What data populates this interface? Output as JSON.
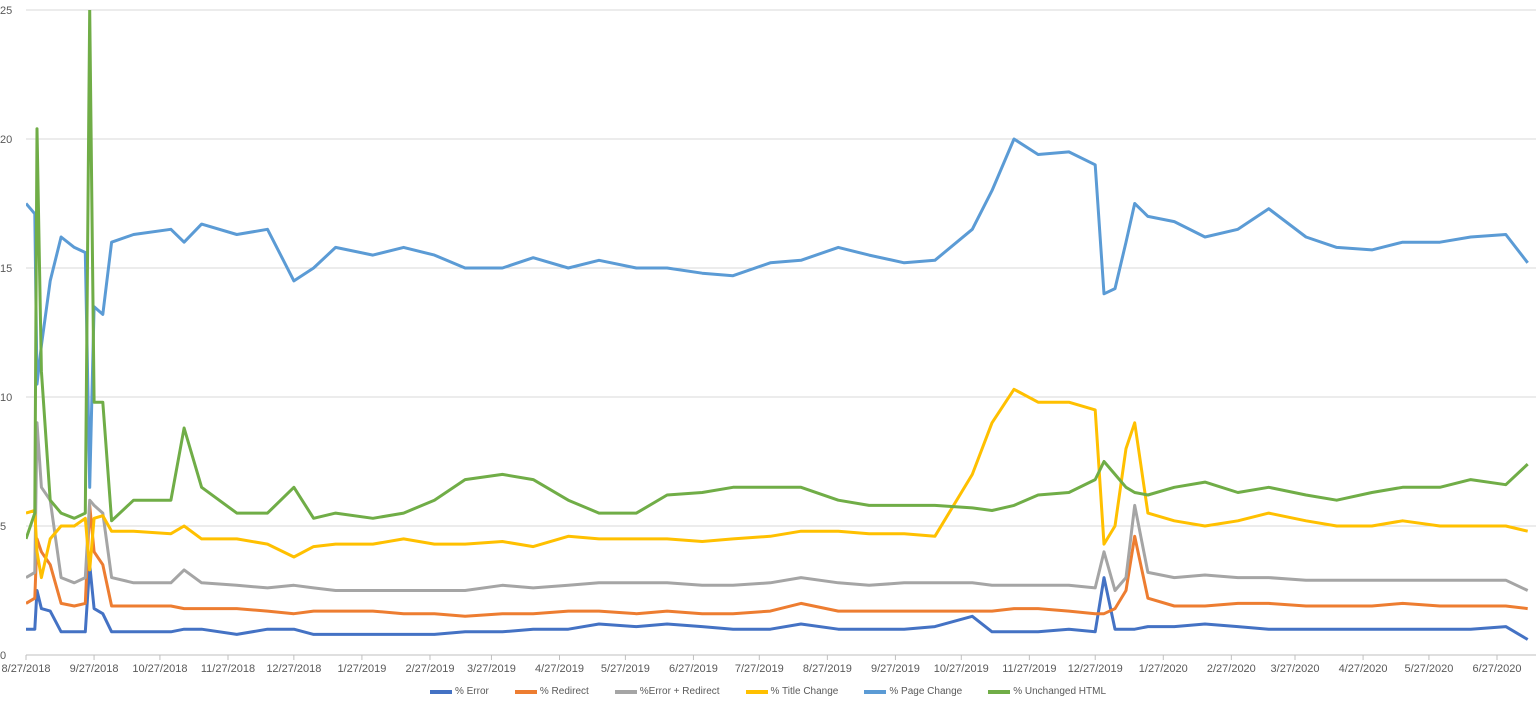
{
  "chart_data": {
    "type": "line",
    "title": "",
    "xlabel": "",
    "ylabel": "",
    "ylim": [
      0,
      25
    ],
    "yticks": [
      "0",
      "5",
      "10",
      "15",
      "20",
      "25"
    ],
    "xticks": [
      "8/27/2018",
      "9/27/2018",
      "10/27/2018",
      "11/27/2018",
      "12/27/2018",
      "1/27/2019",
      "2/27/2019",
      "3/27/2019",
      "4/27/2019",
      "5/27/2019",
      "6/27/2019",
      "7/27/2019",
      "8/27/2019",
      "9/27/2019",
      "10/27/2019",
      "11/27/2019",
      "12/27/2019",
      "1/27/2020",
      "2/27/2020",
      "3/27/2020",
      "4/27/2020",
      "5/27/2020",
      "6/27/2020"
    ],
    "grid": true,
    "legend_position": "bottom",
    "x": [
      "2018-08-27",
      "2018-08-31",
      "2018-09-01",
      "2018-09-03",
      "2018-09-07",
      "2018-09-12",
      "2018-09-18",
      "2018-09-23",
      "2018-09-25",
      "2018-09-27",
      "2018-10-01",
      "2018-10-05",
      "2018-10-15",
      "2018-11-01",
      "2018-11-07",
      "2018-11-15",
      "2018-12-01",
      "2018-12-15",
      "2018-12-27",
      "2019-01-05",
      "2019-01-15",
      "2019-02-01",
      "2019-02-15",
      "2019-03-01",
      "2019-03-15",
      "2019-04-01",
      "2019-04-15",
      "2019-05-01",
      "2019-05-15",
      "2019-06-01",
      "2019-06-15",
      "2019-07-01",
      "2019-07-15",
      "2019-08-01",
      "2019-08-15",
      "2019-09-01",
      "2019-09-15",
      "2019-10-01",
      "2019-10-15",
      "2019-11-01",
      "2019-11-10",
      "2019-11-20",
      "2019-12-01",
      "2019-12-15",
      "2019-12-27",
      "2019-12-31",
      "2020-01-05",
      "2020-01-10",
      "2020-01-14",
      "2020-01-20",
      "2020-02-01",
      "2020-02-15",
      "2020-03-01",
      "2020-03-15",
      "2020-04-01",
      "2020-04-15",
      "2020-05-01",
      "2020-05-15",
      "2020-06-01",
      "2020-06-15",
      "2020-07-01",
      "2020-07-11"
    ],
    "series": [
      {
        "name": "% Error",
        "color": "#4472C4",
        "values": [
          1,
          1,
          2.5,
          1.8,
          1.7,
          0.9,
          0.9,
          0.9,
          3.5,
          1.8,
          1.6,
          0.9,
          0.9,
          0.9,
          1,
          1,
          0.8,
          1,
          1,
          0.8,
          0.8,
          0.8,
          0.8,
          0.8,
          0.9,
          0.9,
          1,
          1,
          1.2,
          1.1,
          1.2,
          1.1,
          1,
          1,
          1.2,
          1,
          1,
          1,
          1.1,
          1.5,
          0.9,
          0.9,
          0.9,
          1,
          0.9,
          3.0,
          1,
          1,
          1,
          1.1,
          1.1,
          1.2,
          1.1,
          1,
          1,
          1,
          1,
          1,
          1,
          1,
          1.1,
          0.6
        ]
      },
      {
        "name": "% Redirect",
        "color": "#ED7D31",
        "values": [
          2,
          2.2,
          4.5,
          4,
          3.5,
          2,
          1.9,
          2,
          5.8,
          4,
          3.5,
          1.9,
          1.9,
          1.9,
          1.8,
          1.8,
          1.8,
          1.7,
          1.6,
          1.7,
          1.7,
          1.7,
          1.6,
          1.6,
          1.5,
          1.6,
          1.6,
          1.7,
          1.7,
          1.6,
          1.7,
          1.6,
          1.6,
          1.7,
          2,
          1.7,
          1.7,
          1.7,
          1.7,
          1.7,
          1.7,
          1.8,
          1.8,
          1.7,
          1.6,
          1.6,
          1.8,
          2.5,
          4.6,
          2.2,
          1.9,
          1.9,
          2,
          2,
          1.9,
          1.9,
          1.9,
          2,
          1.9,
          1.9,
          1.9,
          1.8
        ]
      },
      {
        "name": "%Error + Redirect",
        "color": "#A5A5A5",
        "values": [
          3,
          3.2,
          9,
          6.5,
          6,
          3,
          2.8,
          3,
          6,
          5.8,
          5.5,
          3,
          2.8,
          2.8,
          3.3,
          2.8,
          2.7,
          2.6,
          2.7,
          2.6,
          2.5,
          2.5,
          2.5,
          2.5,
          2.5,
          2.7,
          2.6,
          2.7,
          2.8,
          2.8,
          2.8,
          2.7,
          2.7,
          2.8,
          3,
          2.8,
          2.7,
          2.8,
          2.8,
          2.8,
          2.7,
          2.7,
          2.7,
          2.7,
          2.6,
          4,
          2.5,
          3,
          5.8,
          3.2,
          3,
          3.1,
          3,
          3,
          2.9,
          2.9,
          2.9,
          2.9,
          2.9,
          2.9,
          2.9,
          2.5
        ]
      },
      {
        "name": "% Title Change",
        "color": "#FFC000",
        "values": [
          5.5,
          5.6,
          4,
          3,
          4.5,
          5,
          5,
          5.3,
          3.3,
          5.3,
          5.4,
          4.8,
          4.8,
          4.7,
          5,
          4.5,
          4.5,
          4.3,
          3.8,
          4.2,
          4.3,
          4.3,
          4.5,
          4.3,
          4.3,
          4.4,
          4.2,
          4.6,
          4.5,
          4.5,
          4.5,
          4.4,
          4.5,
          4.6,
          4.8,
          4.8,
          4.7,
          4.7,
          4.6,
          7,
          9,
          10.3,
          9.8,
          9.8,
          9.5,
          4.3,
          5,
          8,
          9,
          5.5,
          5.2,
          5,
          5.2,
          5.5,
          5.2,
          5,
          5,
          5.2,
          5,
          5,
          5,
          4.8
        ]
      },
      {
        "name": "% Page Change",
        "color": "#5B9BD5",
        "values": [
          17.5,
          17.1,
          10.5,
          12,
          14.5,
          16.2,
          15.8,
          15.6,
          6.5,
          13.5,
          13.2,
          16,
          16.3,
          16.5,
          16,
          16.7,
          16.3,
          16.5,
          14.5,
          15,
          15.8,
          15.5,
          15.8,
          15.5,
          15,
          15,
          15.4,
          15,
          15.3,
          15,
          15,
          14.8,
          14.7,
          15.2,
          15.3,
          15.8,
          15.5,
          15.2,
          15.3,
          16.5,
          18,
          20,
          19.4,
          19.5,
          19.0,
          14.0,
          14.2,
          16,
          17.5,
          17,
          16.8,
          16.2,
          16.5,
          17.3,
          16.2,
          15.8,
          15.7,
          16,
          16,
          16.2,
          16.3,
          15.2
        ]
      },
      {
        "name": "% Unchanged HTML",
        "color": "#70AD47",
        "values": [
          4.5,
          5.5,
          20.4,
          11,
          6,
          5.5,
          5.3,
          5.5,
          25,
          9.8,
          9.8,
          5.2,
          6,
          6,
          8.8,
          6.5,
          5.5,
          5.5,
          6.5,
          5.3,
          5.5,
          5.3,
          5.5,
          6,
          6.8,
          7,
          6.8,
          6,
          5.5,
          5.5,
          6.2,
          6.3,
          6.5,
          6.5,
          6.5,
          6,
          5.8,
          5.8,
          5.8,
          5.7,
          5.6,
          5.8,
          6.2,
          6.3,
          6.8,
          7.5,
          7,
          6.5,
          6.3,
          6.2,
          6.5,
          6.7,
          6.3,
          6.5,
          6.2,
          6,
          6.3,
          6.5,
          6.5,
          6.8,
          6.6,
          7.4
        ]
      }
    ]
  }
}
